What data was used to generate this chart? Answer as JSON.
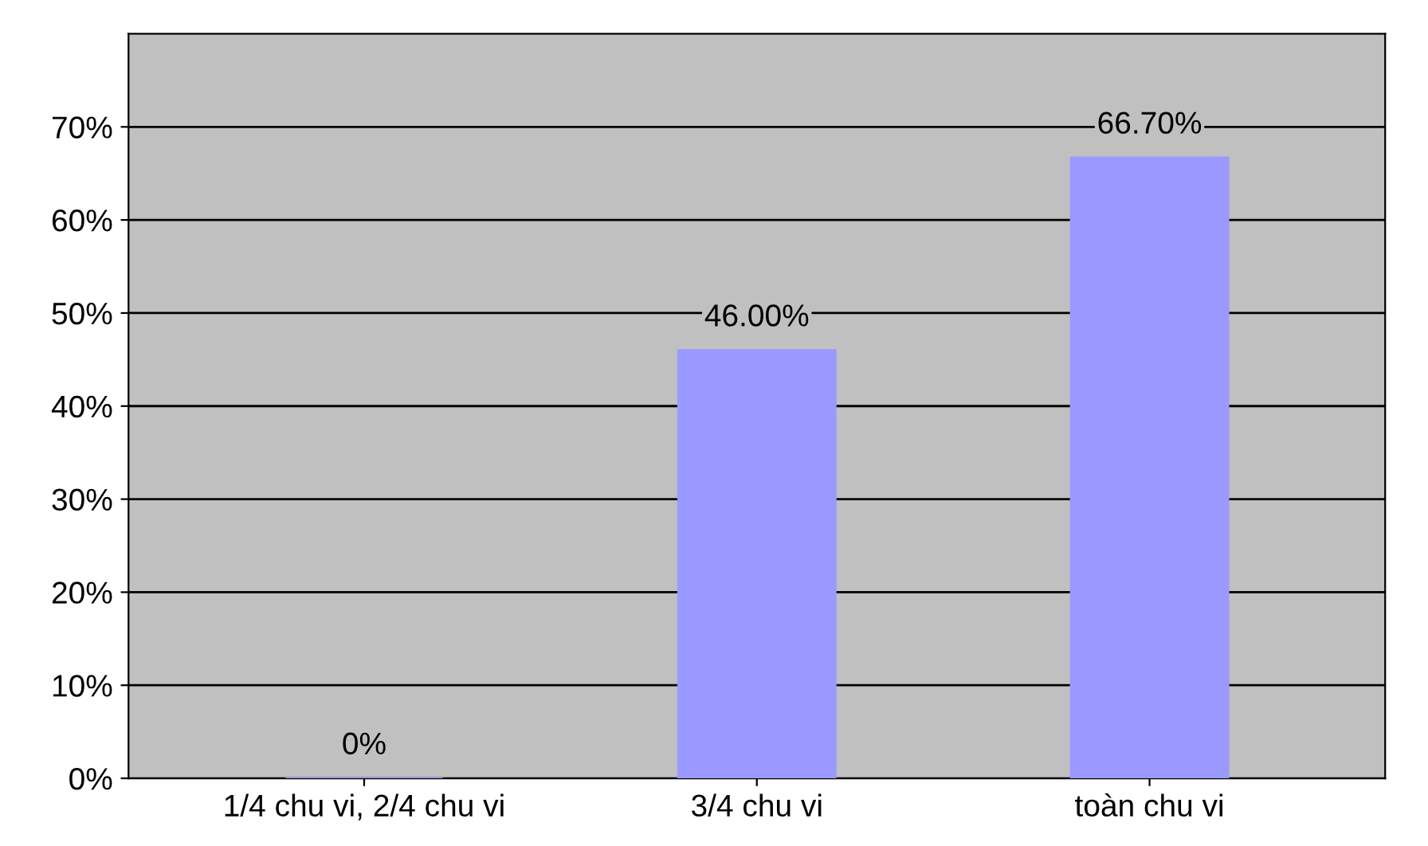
{
  "chart_data": {
    "type": "bar",
    "categories": [
      "1/4 chu vi, 2/4 chu vi",
      "3/4 chu vi",
      "toàn chu vi"
    ],
    "values": [
      0,
      46.0,
      66.7
    ],
    "value_labels": [
      "0%",
      "46.00%",
      "66.70%"
    ],
    "color": "#9999ff",
    "ylim": [
      0,
      80
    ],
    "yticks": [
      {
        "value": 0,
        "label": "0%"
      },
      {
        "value": 10,
        "label": "10%"
      },
      {
        "value": 20,
        "label": "20%"
      },
      {
        "value": 30,
        "label": "30%"
      },
      {
        "value": 40,
        "label": "40%"
      },
      {
        "value": 50,
        "label": "50%"
      },
      {
        "value": 60,
        "label": "60%"
      },
      {
        "value": 70,
        "label": "70%"
      }
    ],
    "grid": "y"
  }
}
